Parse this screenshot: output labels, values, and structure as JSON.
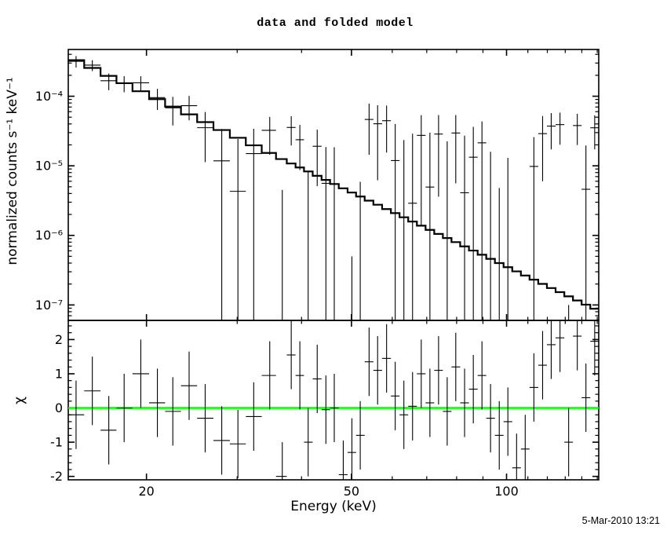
{
  "title": "data and folded model",
  "timestamp": "5-Mar-2010 13:21",
  "colors": {
    "foreground": "#000000",
    "background": "#ffffff",
    "zero_line": "#00ff00"
  },
  "chart_data": {
    "type": "line",
    "subtype": "xspec-spectrum-with-residuals",
    "xlabel": "Energy (keV)",
    "xlim": [
      14.1,
      151
    ],
    "xscale": "log",
    "xticks": {
      "major": [
        {
          "v": 20,
          "label": "20"
        },
        {
          "v": 50,
          "label": "50"
        },
        {
          "v": 100,
          "label": "100"
        }
      ],
      "minor": [
        30,
        40,
        60,
        70,
        80,
        90,
        110,
        120,
        130,
        140,
        150
      ]
    },
    "top_panel": {
      "ylabel": "normalized counts s⁻¹ keV⁻¹",
      "yscale": "log",
      "ylim": [
        6e-08,
        0.00047
      ],
      "yticks": [
        {
          "v": 0.0001,
          "label": "10⁻⁴"
        },
        {
          "v": 1e-05,
          "label": "10⁻⁵"
        },
        {
          "v": 1e-06,
          "label": "10⁻⁶"
        },
        {
          "v": 1e-07,
          "label": "10⁻⁷"
        }
      ],
      "grid": false,
      "legend": "none",
      "series": [
        {
          "name": "data",
          "style": "crosses-with-errorbars"
        },
        {
          "name": "folded model",
          "style": "step-histogram"
        }
      ]
    },
    "bottom_panel": {
      "ylabel": "χ",
      "yscale": "linear",
      "ylim": [
        -2.1,
        2.56
      ],
      "yticks": [
        {
          "v": 2,
          "label": "2"
        },
        {
          "v": 1,
          "label": "1"
        },
        {
          "v": 0,
          "label": "0"
        },
        {
          "v": -1,
          "label": "-1"
        },
        {
          "v": -2,
          "label": "-2"
        }
      ],
      "minor_step": 0.2,
      "zero_line_value": 0,
      "zero_line_color": "#00ff00",
      "chi_errorbar_halflength": 1.0
    },
    "energy": [
      14.6,
      15.7,
      16.9,
      18.1,
      19.5,
      21.0,
      22.5,
      24.2,
      26.0,
      28.0,
      30.1,
      32.3,
      34.7,
      36.7,
      38.2,
      39.7,
      41.2,
      42.9,
      44.6,
      46.3,
      48.2,
      50.1,
      52.0,
      54.1,
      56.2,
      58.5,
      60.8,
      63.2,
      65.7,
      68.3,
      71.0,
      73.8,
      76.7,
      79.7,
      82.9,
      86.2,
      89.6,
      93.1,
      96.8,
      100.6,
      104.6,
      108.7,
      113.0,
      117.5,
      122.1,
      127.0,
      132.0,
      137.2,
      142.6,
      148.3
    ],
    "model": [
      0.00033,
      0.000255,
      0.000196,
      0.000154,
      0.000118,
      9.08e-05,
      7.1e-05,
      5.49e-05,
      4.25e-05,
      3.27e-05,
      2.53e-05,
      1.97e-05,
      1.53e-05,
      1.25e-05,
      1.08e-05,
      9.47e-06,
      8.3e-06,
      7.19e-06,
      6.27e-06,
      5.48e-06,
      4.75e-06,
      4.13e-06,
      3.62e-06,
      3.16e-06,
      2.76e-06,
      2.39e-06,
      2.09e-06,
      1.82e-06,
      1.58e-06,
      1.38e-06,
      1.2e-06,
      1.05e-06,
      9.16e-07,
      8e-07,
      6.95e-07,
      6.05e-07,
      5.27e-07,
      4.6e-07,
      4e-07,
      3.49e-07,
      3.04e-07,
      2.65e-07,
      2.31e-07,
      2.01e-07,
      1.75e-07,
      1.53e-07,
      1.33e-07,
      1.16e-07,
      1.01e-07,
      8.82e-08
    ],
    "data": [
      0.000318,
      0.00028,
      0.000167,
      0.000154,
      0.000156,
      9.56e-05,
      6.8e-05,
      7.31e-05,
      3.53e-05,
      1.18e-05,
      4.3e-06,
      1.5e-05,
      3.24e-05,
      -3.5e-06,
      3.56e-05,
      2.37e-05,
      -5.7e-06,
      1.91e-05,
      5.6e-06,
      5.5e-06,
      -1.86e-05,
      -1.15e-05,
      -5.6e-06,
      4.64e-05,
      4.02e-05,
      4.45e-05,
      1.19e-05,
      -3.6e-06,
      2.9e-06,
      2.74e-05,
      4.95e-06,
      2.86e-05,
      -1.48e-06,
      2.96e-05,
      4.1e-06,
      1.33e-05,
      2.14e-05,
      -6.1e-06,
      -1.72e-05,
      -8e-06,
      -3.64e-05,
      -2.37e-05,
      9.8e-06,
      2.9e-05,
      3.72e-05,
      3.91e-05,
      -2.39e-05,
      3.79e-05,
      4.6e-06,
      3.52e-05
    ],
    "err": [
      6e-05,
      5e-05,
      4.5e-05,
      4e-05,
      3.8e-05,
      3.2e-05,
      3e-05,
      2.8e-05,
      2.4e-05,
      2.2e-05,
      2e-05,
      1.9e-05,
      1.8e-05,
      8e-06,
      1.6e-05,
      1.5e-05,
      1.4e-05,
      1.4e-05,
      1.3e-05,
      1.3e-05,
      1.2e-05,
      1.2e-05,
      1.15e-05,
      3.2e-05,
      3.4e-05,
      2.9e-05,
      2.8e-05,
      2.7e-05,
      2.6e-05,
      2.6e-05,
      2.5e-05,
      2.5e-05,
      2.4e-05,
      2.4e-05,
      2.3e-05,
      2.3e-05,
      2.2e-05,
      2.2e-05,
      2.2e-05,
      2.1e-05,
      2.1e-05,
      2e-05,
      1.6e-05,
      2.3e-05,
      2e-05,
      1.9e-05,
      2.4e-05,
      1.8e-05,
      1.5e-05,
      1.8e-05
    ],
    "chi": [
      -0.2,
      0.5,
      -0.65,
      0.0,
      1.0,
      0.15,
      -0.1,
      0.65,
      -0.3,
      -0.95,
      -1.05,
      -0.25,
      0.95,
      -2.0,
      1.55,
      0.95,
      -1.0,
      0.85,
      -0.05,
      0.0,
      -1.95,
      -1.3,
      -0.8,
      1.35,
      1.1,
      1.45,
      0.35,
      -0.2,
      0.05,
      1.0,
      0.15,
      1.1,
      -0.1,
      1.2,
      0.15,
      0.55,
      0.95,
      -0.3,
      -0.8,
      -0.4,
      -1.75,
      -1.2,
      0.6,
      1.25,
      1.85,
      2.05,
      -1.0,
      2.1,
      0.3,
      1.95
    ]
  }
}
